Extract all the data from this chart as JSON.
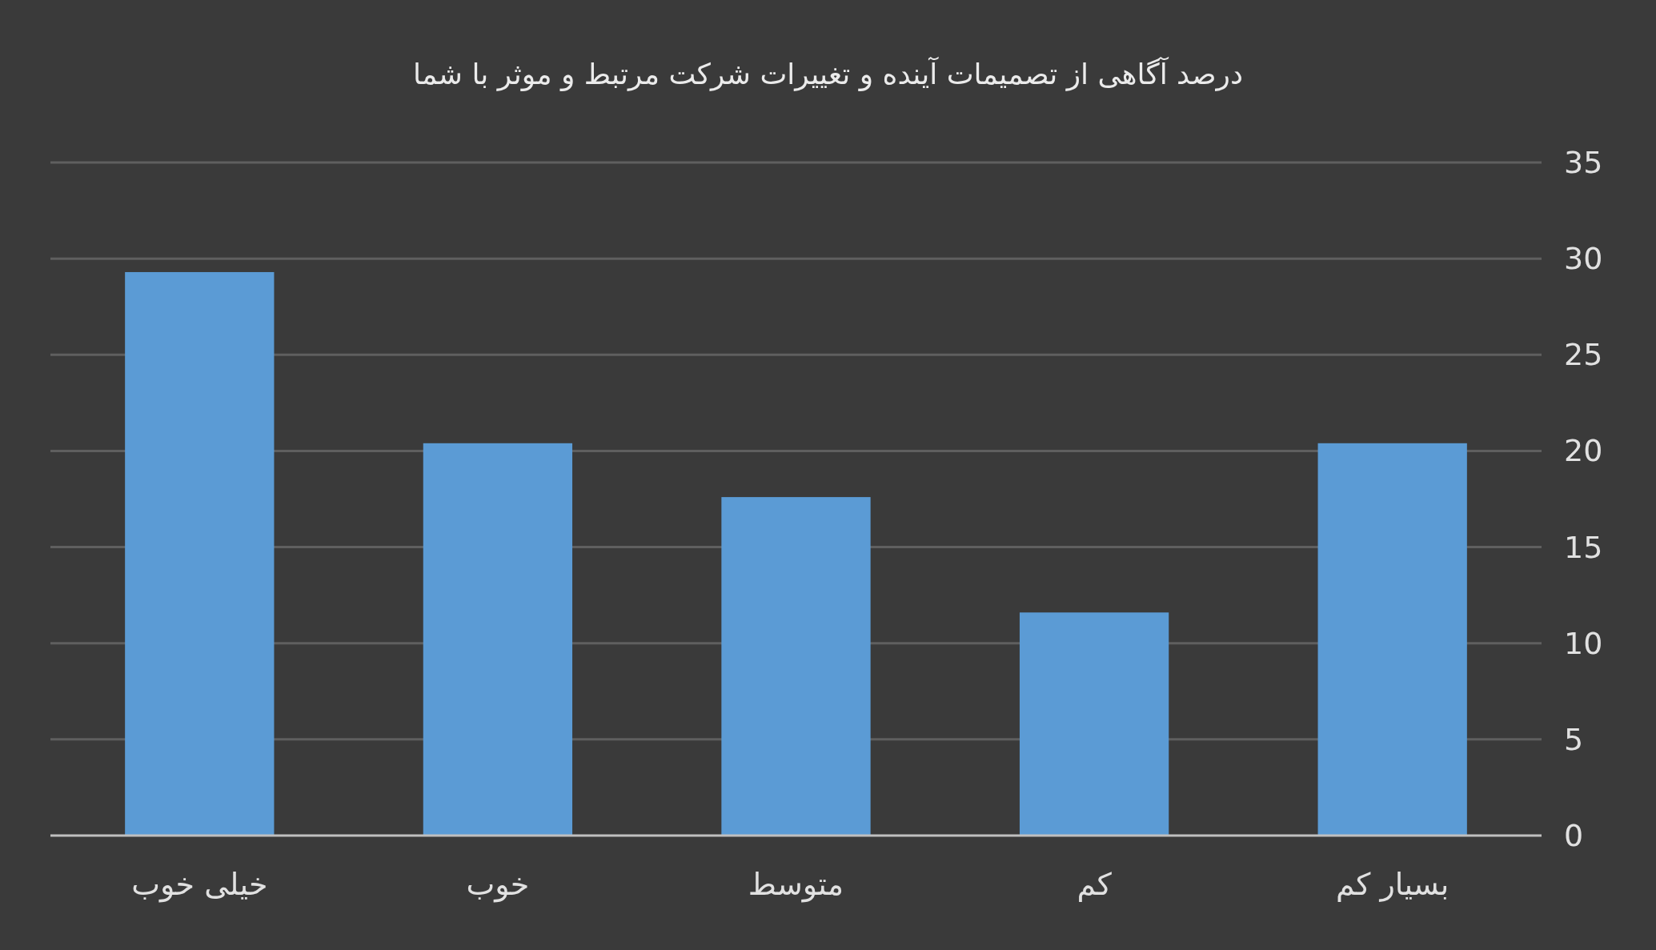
{
  "chart_data": {
    "type": "bar",
    "title": "درصد آگاهی از تصمیمات آینده و تغییرات شرکت مرتبط و موثر با شما",
    "categories": [
      "خیلی خوب",
      "خوب",
      "متوسط",
      "کم",
      "بسیار کم"
    ],
    "values": [
      29.3,
      20.4,
      17.6,
      11.6,
      20.4
    ],
    "color": "#5b9bd5",
    "ylim": [
      0,
      35
    ],
    "yticks": [
      0,
      5,
      10,
      15,
      20,
      25,
      30,
      35
    ],
    "grid": "y"
  }
}
